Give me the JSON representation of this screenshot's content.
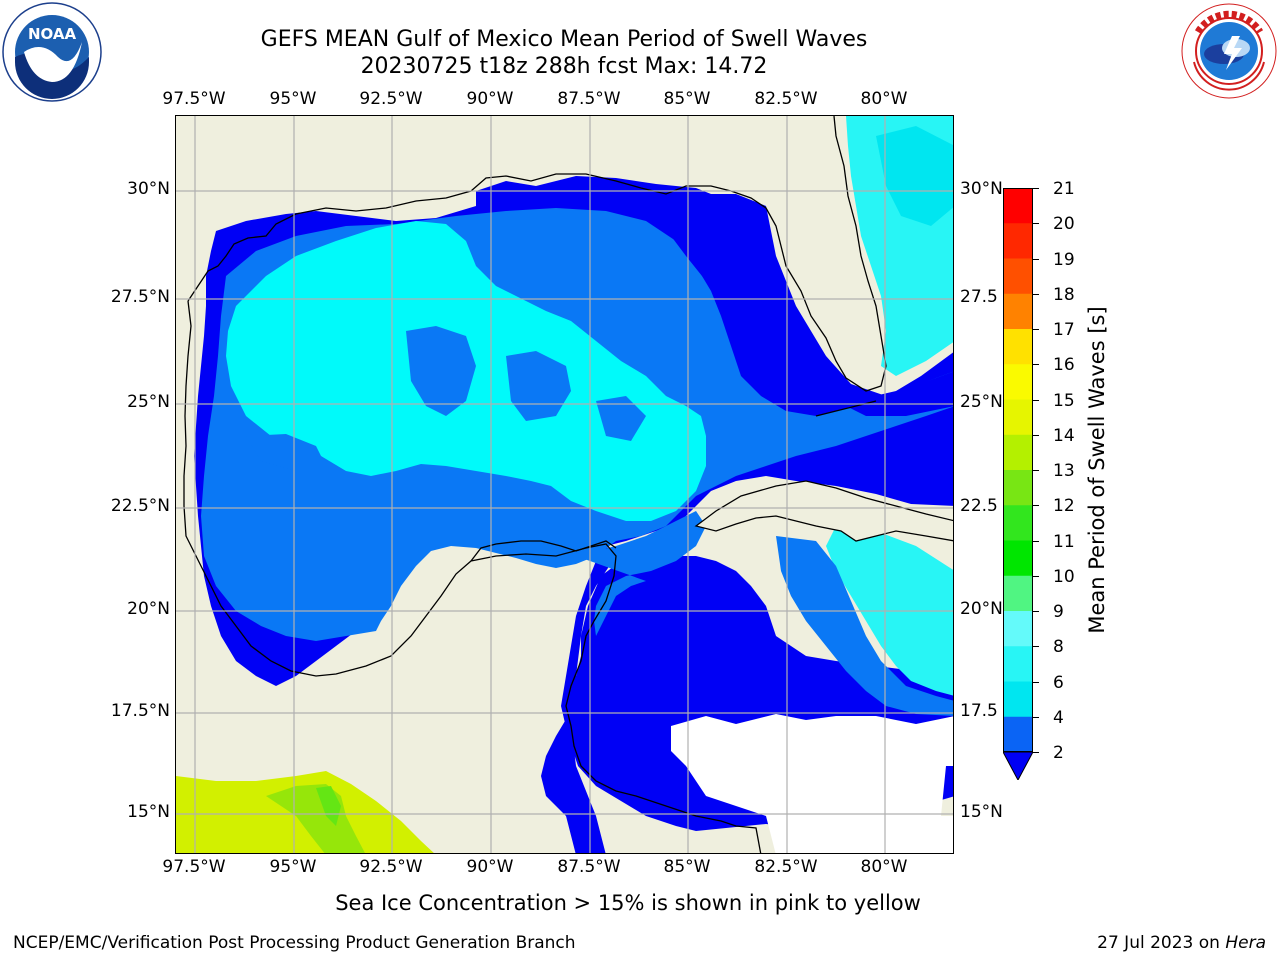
{
  "title": {
    "line1": "GEFS MEAN Gulf of Mexico Mean Period of Swell Waves",
    "line2": "20230725 t18z 288h fcst   Max: 14.72"
  },
  "map": {
    "lon_labels": [
      "97.5°W",
      "95°W",
      "92.5°W",
      "90°W",
      "87.5°W",
      "85°W",
      "82.5°W",
      "80°W"
    ],
    "lat_labels_left": [
      "30°N",
      "27.5°N",
      "25°N",
      "22.5°N",
      "20°N",
      "17.5°N",
      "15°N"
    ],
    "lat_labels_right": [
      "30°N",
      "27.5",
      "25°N",
      "22.5",
      "20°N",
      "17.5",
      "15°N"
    ],
    "land_color": "#efefde",
    "coastline_color": "#000000",
    "grid_color": "#b0b0b0"
  },
  "colorbar": {
    "label": "Mean Period of Swell Waves [s]",
    "ticks": [
      "2",
      "4",
      "6",
      "8",
      "9",
      "10",
      "11",
      "12",
      "13",
      "14",
      "15",
      "16",
      "17",
      "18",
      "19",
      "20",
      "21"
    ],
    "colors": [
      "#0a64f5",
      "#00e6f0",
      "#28f5f5",
      "#64fafa",
      "#a0fafa",
      "#50f582",
      "#00e600",
      "#32e61e",
      "#78e614",
      "#b4f000",
      "#e6f500",
      "#fafa00",
      "#ffe100",
      "#ffb400",
      "#ff8200",
      "#ff5000",
      "#ff2800",
      "#ff0000"
    ],
    "under_color": "#0000f5"
  },
  "footnote": "Sea Ice Concentration > 15% is shown in pink to yellow",
  "credit": "NCEP/EMC/Verification Post Processing Product Generation Branch",
  "dateline": {
    "date": "27 Jul 2023 on",
    "host": "Hera"
  },
  "logos": {
    "noaa_text": "NOAA",
    "noaa_ring": "NATIONAL OCEANIC AND ATMOSPHERIC ADMINISTRATION · U.S. DEPARTMENT OF COMMERCE",
    "nws_ring": "NATIONAL WEATHER SERVICE"
  }
}
